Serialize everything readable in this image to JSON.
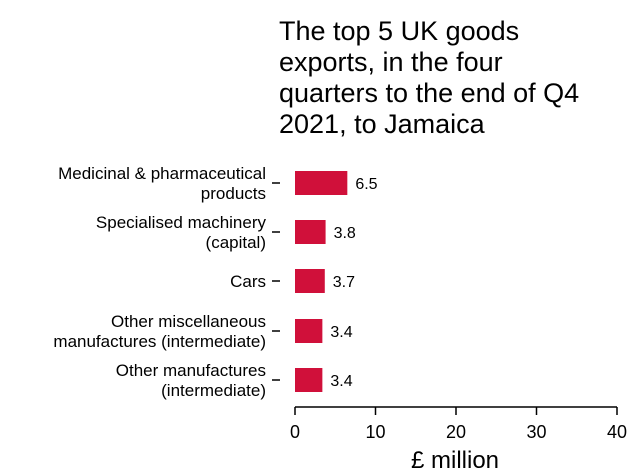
{
  "chart_data": {
    "type": "bar",
    "orientation": "horizontal",
    "title_lines": [
      "The top 5 UK goods",
      "exports, in the four",
      "quarters to the end of Q4",
      "2021, to Jamaica"
    ],
    "categories": [
      [
        "Medicinal & pharmaceutical",
        "products"
      ],
      [
        "Specialised machinery",
        "(capital)"
      ],
      [
        "Cars"
      ],
      [
        "Other miscellaneous",
        "manufactures (intermediate)"
      ],
      [
        "Other manufactures",
        "(intermediate)"
      ]
    ],
    "values": [
      6.5,
      3.8,
      3.7,
      3.4,
      3.4
    ],
    "value_labels": [
      "6.5",
      "3.8",
      "3.7",
      "3.4",
      "3.4"
    ],
    "xlabel": "£ million",
    "xlim": [
      0,
      40
    ],
    "xticks": [
      0,
      10,
      20,
      30,
      40
    ],
    "grid": false,
    "bar_color": "#d0103a"
  }
}
